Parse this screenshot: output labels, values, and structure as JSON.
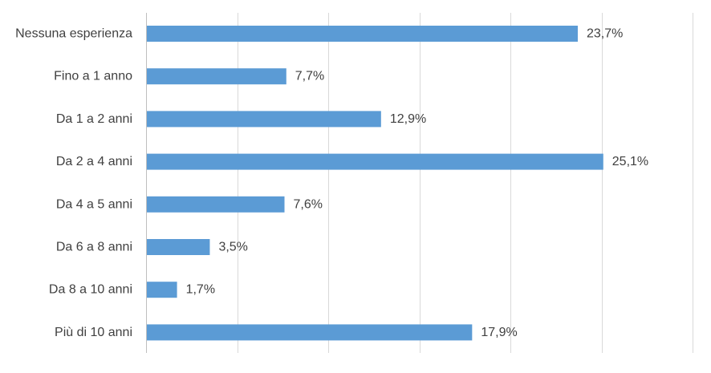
{
  "chart_data": {
    "type": "bar",
    "orientation": "horizontal",
    "title": "",
    "xlabel": "",
    "ylabel": "",
    "categories": [
      "Nessuna esperienza",
      "Fino a 1 anno",
      "Da 1 a 2 anni",
      "Da 2 a 4 anni",
      "Da 4 a 5 anni",
      "Da 6 a 8 anni",
      "Da 8 a 10 anni",
      "Più di 10 anni"
    ],
    "values": [
      23.7,
      7.7,
      12.9,
      25.1,
      7.6,
      3.5,
      1.7,
      17.9
    ],
    "value_labels": [
      "23,7%",
      "7,7%",
      "12,9%",
      "25,1%",
      "7,6%",
      "3,5%",
      "1,7%",
      "17,9%"
    ],
    "xlim": [
      0,
      30
    ],
    "grid": true,
    "legend": "none",
    "bar_color": "#5b9bd5",
    "gridline_color": "#d9d9d9",
    "text_color": "#404040"
  }
}
